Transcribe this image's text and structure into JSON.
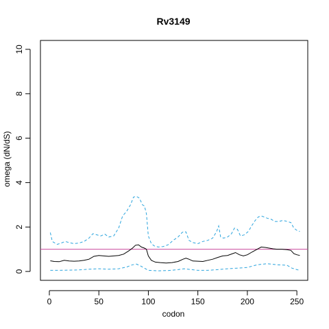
{
  "chart_data": {
    "type": "line",
    "title": "Rv3149",
    "xlabel": "codon",
    "ylabel": "omega (dN/dS)",
    "xlim": [
      -9,
      261
    ],
    "ylim": [
      -0.4,
      10.4
    ],
    "xticks": [
      0,
      50,
      100,
      150,
      200,
      250
    ],
    "yticks": [
      0,
      2,
      4,
      6,
      8,
      10
    ],
    "grid": false,
    "legend": "none",
    "reference_line": {
      "y": 1,
      "color": "#c9479b"
    },
    "series": [
      {
        "role": "upper",
        "color": "#29a3dd",
        "dash": "dashed",
        "x": [
          1,
          3,
          8,
          12,
          16,
          20,
          25,
          30,
          35,
          40,
          44,
          48,
          52,
          56,
          60,
          65,
          70,
          74,
          78,
          82,
          85,
          88,
          91,
          94,
          96,
          98,
          100,
          103,
          106,
          110,
          115,
          120,
          125,
          130,
          134,
          136,
          138,
          141,
          145,
          150,
          155,
          160,
          165,
          169,
          171,
          173,
          176,
          180,
          184,
          187,
          190,
          193,
          197,
          201,
          205,
          208,
          211,
          214,
          217,
          220,
          224,
          228,
          232,
          236,
          240,
          244,
          247,
          250,
          253
        ],
        "y": [
          1.75,
          1.35,
          1.22,
          1.28,
          1.35,
          1.3,
          1.25,
          1.28,
          1.35,
          1.5,
          1.7,
          1.65,
          1.6,
          1.68,
          1.55,
          1.6,
          1.95,
          2.5,
          2.7,
          3.0,
          3.35,
          3.38,
          3.3,
          3.0,
          2.95,
          2.6,
          1.6,
          1.25,
          1.15,
          1.1,
          1.12,
          1.2,
          1.4,
          1.55,
          1.75,
          1.8,
          1.78,
          1.4,
          1.3,
          1.25,
          1.35,
          1.4,
          1.5,
          1.8,
          2.05,
          1.55,
          1.5,
          1.55,
          1.7,
          1.95,
          1.9,
          1.6,
          1.65,
          1.8,
          2.1,
          2.3,
          2.45,
          2.5,
          2.45,
          2.4,
          2.35,
          2.25,
          2.25,
          2.3,
          2.25,
          2.2,
          1.95,
          1.85,
          1.8
        ]
      },
      {
        "role": "estimate",
        "color": "#000000",
        "dash": "solid",
        "x": [
          1,
          5,
          10,
          15,
          20,
          25,
          30,
          35,
          40,
          45,
          50,
          55,
          60,
          65,
          70,
          75,
          80,
          84,
          87,
          90,
          93,
          96,
          98,
          100,
          103,
          107,
          112,
          118,
          124,
          130,
          135,
          138,
          141,
          145,
          150,
          155,
          160,
          165,
          170,
          175,
          180,
          185,
          188,
          192,
          196,
          200,
          205,
          210,
          214,
          218,
          222,
          226,
          230,
          235,
          240,
          244,
          247,
          250,
          253
        ],
        "y": [
          0.48,
          0.45,
          0.44,
          0.5,
          0.47,
          0.46,
          0.47,
          0.5,
          0.55,
          0.68,
          0.72,
          0.7,
          0.68,
          0.7,
          0.72,
          0.78,
          0.92,
          1.05,
          1.18,
          1.2,
          1.1,
          1.05,
          1.0,
          0.7,
          0.5,
          0.42,
          0.4,
          0.38,
          0.4,
          0.45,
          0.55,
          0.6,
          0.55,
          0.47,
          0.46,
          0.45,
          0.5,
          0.55,
          0.63,
          0.7,
          0.72,
          0.8,
          0.85,
          0.75,
          0.7,
          0.75,
          0.88,
          1.0,
          1.1,
          1.08,
          1.05,
          1.02,
          1.0,
          1.0,
          0.98,
          0.95,
          0.8,
          0.75,
          0.72
        ]
      },
      {
        "role": "lower",
        "color": "#29a3dd",
        "dash": "dashed",
        "x": [
          1,
          10,
          20,
          30,
          40,
          50,
          60,
          70,
          78,
          84,
          88,
          92,
          96,
          100,
          110,
          120,
          130,
          136,
          140,
          150,
          160,
          170,
          180,
          190,
          200,
          210,
          220,
          230,
          240,
          245,
          250,
          253
        ],
        "y": [
          0.05,
          0.05,
          0.06,
          0.07,
          0.1,
          0.12,
          0.1,
          0.12,
          0.2,
          0.3,
          0.33,
          0.25,
          0.15,
          0.05,
          0.03,
          0.04,
          0.08,
          0.12,
          0.1,
          0.05,
          0.05,
          0.08,
          0.12,
          0.15,
          0.18,
          0.3,
          0.35,
          0.3,
          0.28,
          0.15,
          0.08,
          0.05
        ]
      }
    ]
  }
}
